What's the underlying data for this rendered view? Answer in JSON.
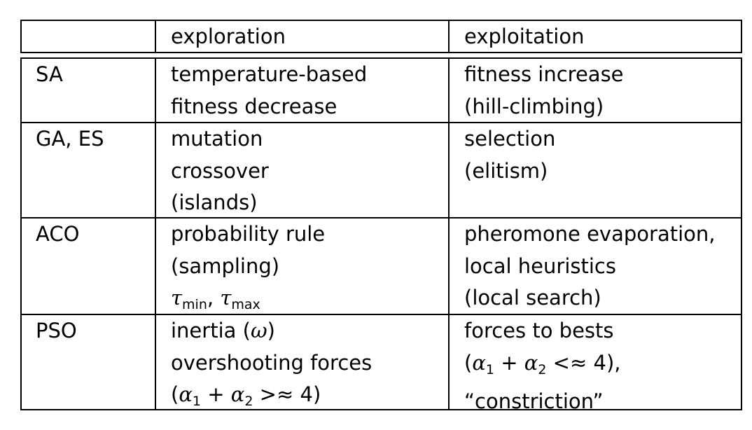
{
  "header": {
    "rowlabel": "",
    "exploration": "exploration",
    "exploitation": "exploitation"
  },
  "rows": [
    {
      "name": "SA",
      "exploration": [
        "temperature-based",
        "fitness decrease"
      ],
      "exploitation": [
        "fitness increase",
        "(hill-climbing)"
      ]
    },
    {
      "name": "GA, ES",
      "exploration": [
        "mutation",
        "crossover",
        "(islands)"
      ],
      "exploitation": [
        "selection",
        "(elitism)"
      ]
    },
    {
      "name": "ACO",
      "exploration": [
        "probability rule",
        "(sampling)",
        "τmin, τmax"
      ],
      "exploitation": [
        "pheromone evaporation,",
        "local heuristics",
        "(local search)"
      ]
    },
    {
      "name": "PSO",
      "exploration": [
        "inertia (ω)",
        "overshooting forces",
        "(α1 + α2 >≈ 4)"
      ],
      "exploitation": [
        "forces to bests",
        "(α1 + α2 <≈ 4),",
        "“constriction”"
      ]
    }
  ]
}
